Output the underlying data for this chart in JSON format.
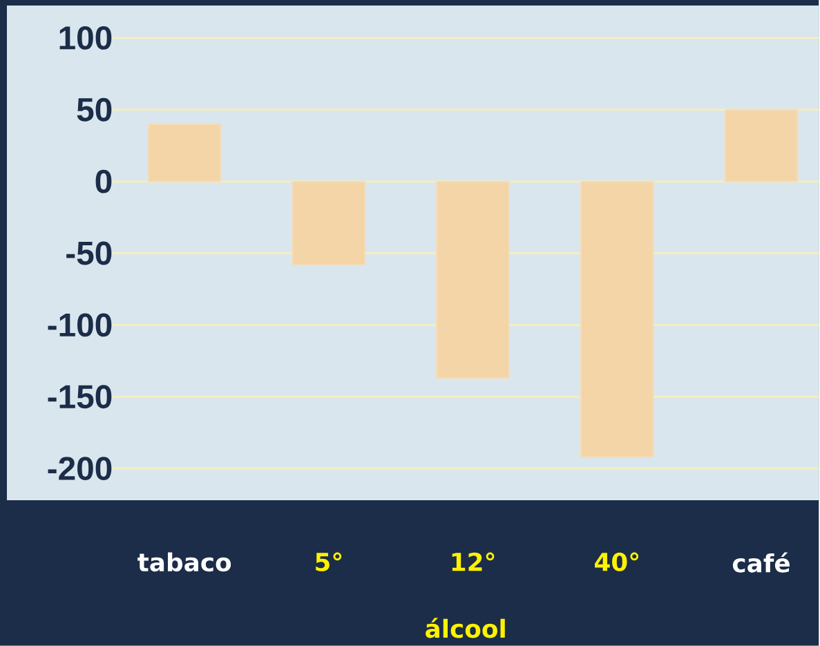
{
  "chart_data": {
    "type": "bar",
    "categories": [
      "tabaco",
      "5°",
      "12°",
      "40°",
      "café"
    ],
    "values": [
      40,
      -58,
      -137,
      -192,
      50
    ],
    "color": "#f3d5a8",
    "ylim": [
      -200,
      100
    ],
    "yticks": [
      -200,
      -150,
      -100,
      -50,
      0,
      50,
      100
    ],
    "grid": "y",
    "annotations": [
      "álcool"
    ]
  }
}
